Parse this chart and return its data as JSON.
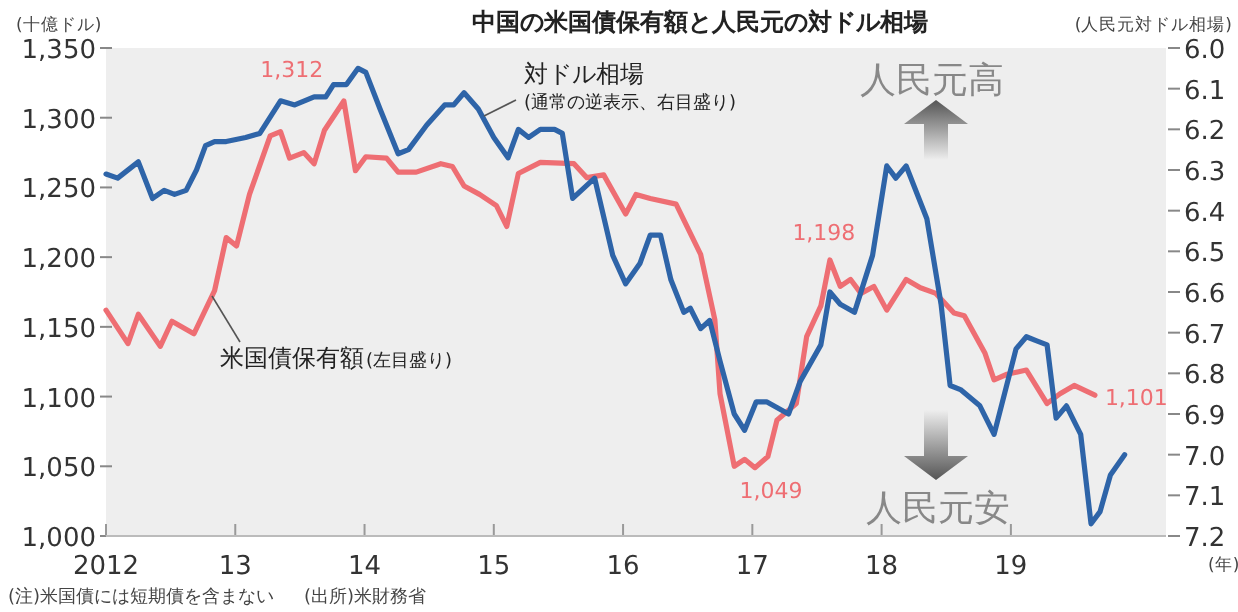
{
  "chart_data": {
    "type": "line",
    "title": "中国の米国債保有額と人民元の対ドル相場",
    "ylabel": "(十億ドル)",
    "y2label": "(人民元対ドル相場)",
    "xlabel": "(年)",
    "xlim": [
      2012,
      2020.2
    ],
    "xticks": [
      {
        "value": 2012,
        "label": "2012"
      },
      {
        "value": 2013,
        "label": "13"
      },
      {
        "value": 2014,
        "label": "14"
      },
      {
        "value": 2015,
        "label": "15"
      },
      {
        "value": 2016,
        "label": "16"
      },
      {
        "value": 2017,
        "label": "17"
      },
      {
        "value": 2018,
        "label": "18"
      },
      {
        "value": 2019,
        "label": "19"
      }
    ],
    "ylim": [
      1000,
      1350
    ],
    "yticks": [
      {
        "value": 1000,
        "label": "1,000"
      },
      {
        "value": 1050,
        "label": "1,050"
      },
      {
        "value": 1100,
        "label": "1,100"
      },
      {
        "value": 1150,
        "label": "1,150"
      },
      {
        "value": 1200,
        "label": "1,200"
      },
      {
        "value": 1250,
        "label": "1,250"
      },
      {
        "value": 1300,
        "label": "1,300"
      },
      {
        "value": 1350,
        "label": "1,350"
      }
    ],
    "y2lim": [
      7.2,
      6.0
    ],
    "y2ticks": [
      {
        "value": 6,
        "label": "6.0"
      },
      6.1,
      6.2,
      6.3,
      6.4,
      6.5,
      6.6,
      6.7,
      6.8,
      6.9,
      {
        "value": 7,
        "label": "7.0"
      },
      7.1,
      7.2
    ],
    "grid": false,
    "series": [
      {
        "name": "米国債保有額",
        "color": "#ee6e73",
        "x": [
          2012,
          2012.17,
          2012.25,
          2012.42,
          2012.51,
          2012.68,
          2012.84,
          2012.93,
          2013.01,
          2013.11,
          2013.27,
          2013.35,
          2013.42,
          2013.53,
          2013.61,
          2013.69,
          2013.84,
          2013.93,
          2014.01,
          2014.17,
          2014.26,
          2014.4,
          2014.59,
          2014.68,
          2014.77,
          2014.89,
          2015.02,
          2015.1,
          2015.19,
          2015.36,
          2015.62,
          2015.72,
          2015.85,
          2016.02,
          2016.1,
          2016.21,
          2016.41,
          2016.6,
          2016.71,
          2016.75,
          2016.86,
          2016.94,
          2017.02,
          2017.12,
          2017.19,
          2017.34,
          2017.42,
          2017.53,
          2017.6,
          2017.68,
          2017.76,
          2017.84,
          2017.94,
          2018.04,
          2018.19,
          2018.3,
          2018.42,
          2018.56,
          2018.64,
          2018.8,
          2018.87,
          2018.97,
          2019.12,
          2019.28,
          2019.38,
          2019.49,
          2019.65
        ],
        "values": [
          1162,
          1138,
          1159,
          1136,
          1154,
          1145,
          1176,
          1214,
          1208,
          1245,
          1287,
          1290,
          1271,
          1275,
          1267,
          1291,
          1312,
          1262,
          1272,
          1271,
          1261,
          1261,
          1267,
          1265,
          1251,
          1245,
          1237,
          1222,
          1260,
          1268,
          1267,
          1257,
          1259,
          1231,
          1245,
          1242,
          1238,
          1202,
          1155,
          1102,
          1050,
          1055,
          1049,
          1057,
          1083,
          1095,
          1143,
          1165,
          1198,
          1179,
          1184,
          1174,
          1179,
          1162,
          1184,
          1178,
          1174,
          1160,
          1158,
          1131,
          1112,
          1116,
          1119,
          1095,
          1102,
          1108,
          1101
        ]
      },
      {
        "name": "対ドル相場",
        "color": "#2e64a8",
        "axis": "y2",
        "x": [
          2012,
          2012.09,
          2012.25,
          2012.36,
          2012.45,
          2012.53,
          2012.62,
          2012.7,
          2012.77,
          2012.84,
          2012.93,
          2013.08,
          2013.19,
          2013.35,
          2013.46,
          2013.61,
          2013.7,
          2013.76,
          2013.86,
          2013.95,
          2014.01,
          2014.12,
          2014.26,
          2014.34,
          2014.48,
          2014.62,
          2014.69,
          2014.77,
          2014.88,
          2015,
          2015.11,
          2015.19,
          2015.27,
          2015.36,
          2015.47,
          2015.53,
          2015.61,
          2015.78,
          2015.92,
          2016.02,
          2016.13,
          2016.21,
          2016.29,
          2016.37,
          2016.47,
          2016.52,
          2016.6,
          2016.67,
          2016.75,
          2016.86,
          2016.94,
          2017.03,
          2017.11,
          2017.28,
          2017.37,
          2017.53,
          2017.6,
          2017.68,
          2017.79,
          2017.93,
          2018.04,
          2018.11,
          2018.19,
          2018.35,
          2018.46,
          2018.53,
          2018.61,
          2018.76,
          2018.87,
          2019.04,
          2019.12,
          2019.2,
          2019.28,
          2019.35,
          2019.43,
          2019.54,
          2019.62,
          2019.69,
          2019.77,
          2019.88
        ],
        "values": [
          6.31,
          6.32,
          6.28,
          6.37,
          6.35,
          6.36,
          6.35,
          6.3,
          6.24,
          6.23,
          6.23,
          6.22,
          6.21,
          6.13,
          6.14,
          6.12,
          6.12,
          6.09,
          6.09,
          6.05,
          6.06,
          6.15,
          6.26,
          6.25,
          6.19,
          6.14,
          6.14,
          6.11,
          6.15,
          6.22,
          6.27,
          6.2,
          6.22,
          6.2,
          6.2,
          6.21,
          6.37,
          6.32,
          6.51,
          6.58,
          6.53,
          6.46,
          6.46,
          6.57,
          6.65,
          6.64,
          6.69,
          6.67,
          6.77,
          6.9,
          6.94,
          6.87,
          6.87,
          6.9,
          6.82,
          6.73,
          6.6,
          6.63,
          6.65,
          6.51,
          6.29,
          6.32,
          6.29,
          6.42,
          6.63,
          6.83,
          6.84,
          6.88,
          6.95,
          6.74,
          6.71,
          6.72,
          6.73,
          6.91,
          6.88,
          6.95,
          7.17,
          7.14,
          7.05,
          7.0
        ]
      }
    ],
    "annotations": [
      {
        "text": "1,312",
        "x": 2013.84,
        "y": 1312
      },
      {
        "text": "1,049",
        "x": 2017.02,
        "y": 1049
      },
      {
        "text": "1,198",
        "x": 2017.6,
        "y": 1198
      },
      {
        "text": "1,101",
        "x": 2019.65,
        "y": 1101
      },
      "(通常の逆表示、右目盛り)",
      "(左目盛り)",
      "人民元高",
      "人民元安",
      "(注)米国債には短期債を含まない",
      "(出所)米財務省"
    ]
  }
}
